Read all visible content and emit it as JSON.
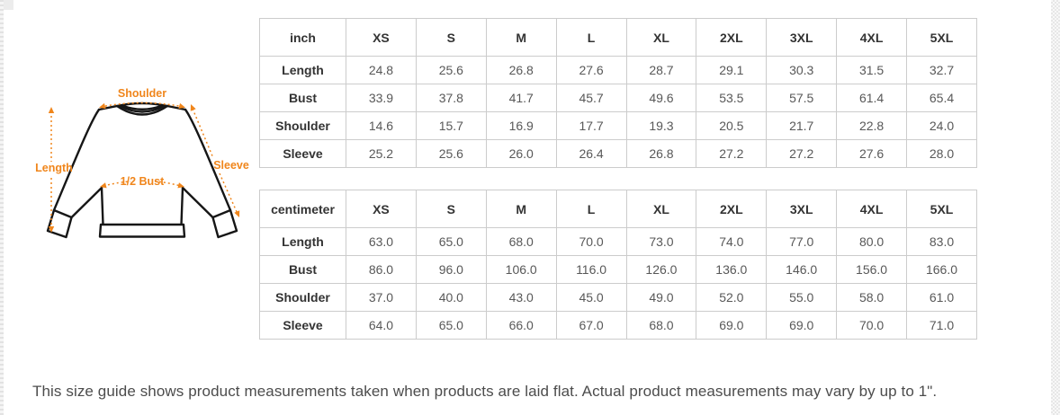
{
  "diagram": {
    "accent_color": "#f0861c",
    "labels": {
      "shoulder": "Shoulder",
      "length": "Length",
      "sleeve": "Sleeve",
      "half_bust": "1/2 Bust"
    }
  },
  "tables": [
    {
      "unit_label": "inch",
      "size_headers": [
        "XS",
        "S",
        "M",
        "L",
        "XL",
        "2XL",
        "3XL",
        "4XL",
        "5XL"
      ],
      "rows": [
        {
          "label": "Length",
          "values": [
            "24.8",
            "25.6",
            "26.8",
            "27.6",
            "28.7",
            "29.1",
            "30.3",
            "31.5",
            "32.7"
          ]
        },
        {
          "label": "Bust",
          "values": [
            "33.9",
            "37.8",
            "41.7",
            "45.7",
            "49.6",
            "53.5",
            "57.5",
            "61.4",
            "65.4"
          ]
        },
        {
          "label": "Shoulder",
          "values": [
            "14.6",
            "15.7",
            "16.9",
            "17.7",
            "19.3",
            "20.5",
            "21.7",
            "22.8",
            "24.0"
          ]
        },
        {
          "label": "Sleeve",
          "values": [
            "25.2",
            "25.6",
            "26.0",
            "26.4",
            "26.8",
            "27.2",
            "27.2",
            "27.6",
            "28.0"
          ]
        }
      ]
    },
    {
      "unit_label": "centimeter",
      "size_headers": [
        "XS",
        "S",
        "M",
        "L",
        "XL",
        "2XL",
        "3XL",
        "4XL",
        "5XL"
      ],
      "rows": [
        {
          "label": "Length",
          "values": [
            "63.0",
            "65.0",
            "68.0",
            "70.0",
            "73.0",
            "74.0",
            "77.0",
            "80.0",
            "83.0"
          ]
        },
        {
          "label": "Bust",
          "values": [
            "86.0",
            "96.0",
            "106.0",
            "116.0",
            "126.0",
            "136.0",
            "146.0",
            "156.0",
            "166.0"
          ]
        },
        {
          "label": "Shoulder",
          "values": [
            "37.0",
            "40.0",
            "43.0",
            "45.0",
            "49.0",
            "52.0",
            "55.0",
            "58.0",
            "61.0"
          ]
        },
        {
          "label": "Sleeve",
          "values": [
            "64.0",
            "65.0",
            "66.0",
            "67.0",
            "68.0",
            "69.0",
            "69.0",
            "70.0",
            "71.0"
          ]
        }
      ]
    }
  ],
  "footnote": "This size guide shows product measurements taken when products are laid flat. Actual product measurements may vary by up to 1\"."
}
